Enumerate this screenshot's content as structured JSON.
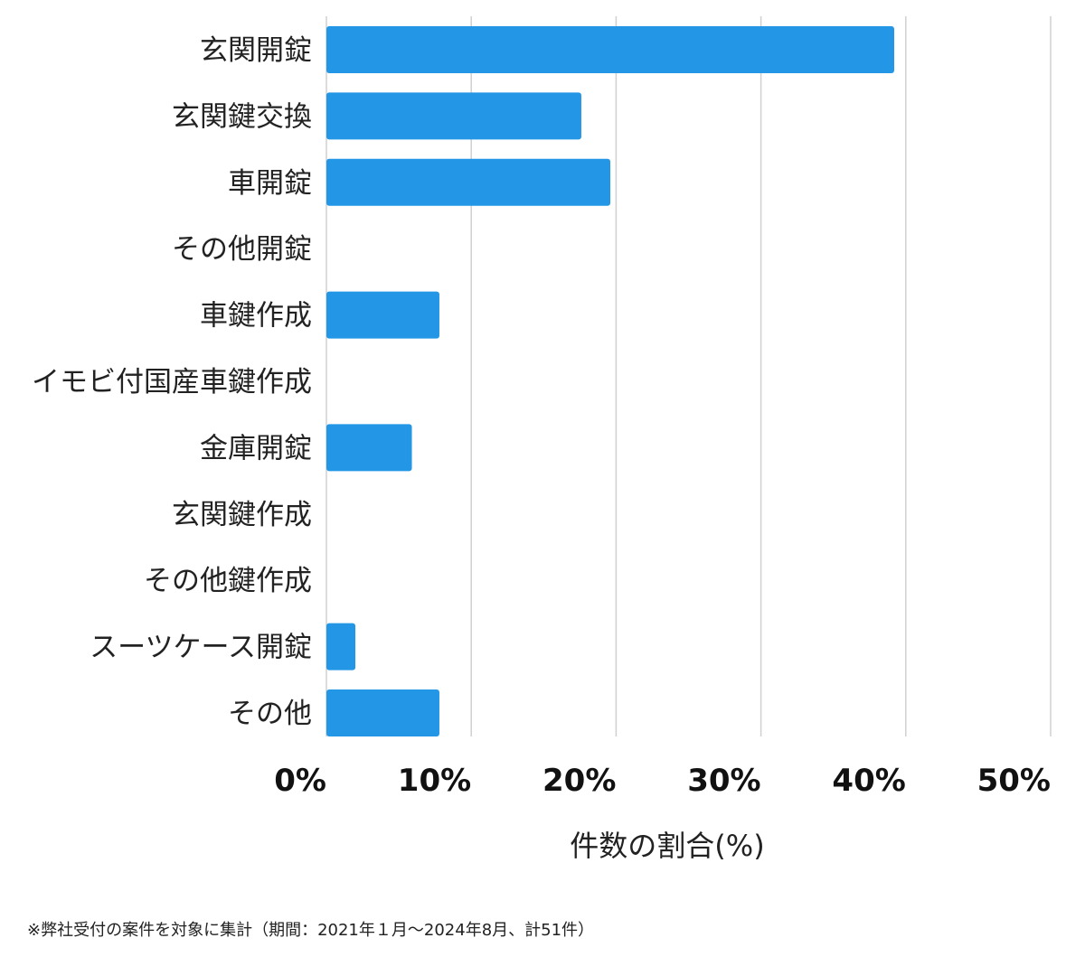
{
  "chart_data": {
    "type": "bar",
    "orientation": "horizontal",
    "categories": [
      "玄関開錠",
      "玄関鍵交換",
      "車開錠",
      "その他開錠",
      "車鍵作成",
      "イモビ付国産車鍵作成",
      "金庫開錠",
      "玄関鍵作成",
      "その他鍵作成",
      "スーツケース開錠",
      "その他"
    ],
    "values": [
      39.2,
      17.6,
      19.6,
      0,
      7.8,
      0,
      5.9,
      0,
      0,
      2.0,
      7.8
    ],
    "xlabel": "件数の割合(%)",
    "ylabel": "",
    "xlim": [
      0,
      50
    ],
    "xticks": [
      0,
      10,
      20,
      30,
      40,
      50
    ],
    "xtick_labels": [
      "0%",
      "10%",
      "20%",
      "30%",
      "40%",
      "50%"
    ],
    "grid": "vertical",
    "bar_color": "#2496e6",
    "grid_color": "#d0d0d0"
  },
  "footnote": "※弊社受付の案件を対象に集計（期間：2021年１月〜2024年8月、計51件）"
}
